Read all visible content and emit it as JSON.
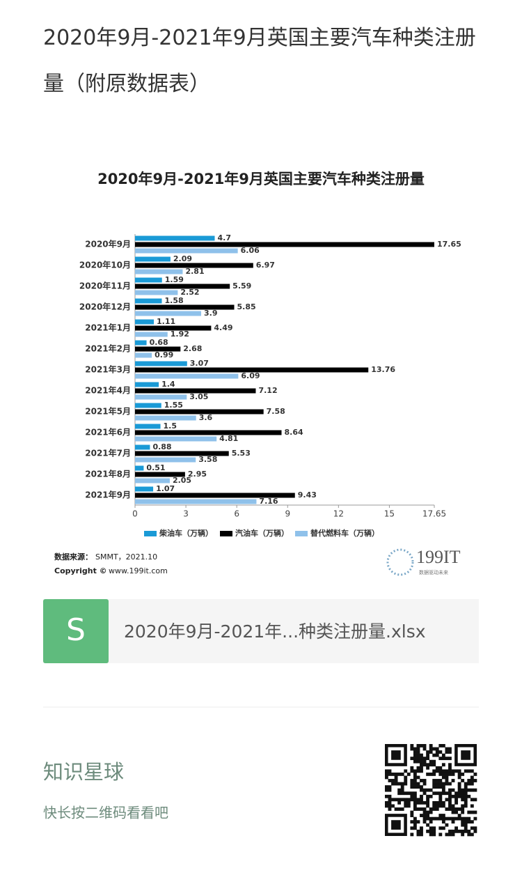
{
  "page_title": "2020年9月-2021年9月英国主要汽车种类注册量（附原数据表）",
  "chart_data": {
    "type": "hbar",
    "title": "2020年9月-2021年9月英国主要汽车种类注册量",
    "categories": [
      "2020年9月",
      "2020年10月",
      "2020年11月",
      "2020年12月",
      "2021年1月",
      "2021年2月",
      "2021年3月",
      "2021年4月",
      "2021年5月",
      "2021年6月",
      "2021年7月",
      "2021年8月",
      "2021年9月"
    ],
    "series": [
      {
        "name": "柴油车（万辆）",
        "color": "#1a9ad6",
        "values": [
          4.7,
          2.09,
          1.59,
          1.58,
          1.11,
          0.68,
          3.07,
          1.4,
          1.55,
          1.5,
          0.88,
          0.51,
          1.07
        ]
      },
      {
        "name": "汽油车（万辆）",
        "color": "#000000",
        "values": [
          17.65,
          6.97,
          5.59,
          5.85,
          4.49,
          2.68,
          13.76,
          7.12,
          7.58,
          8.64,
          5.53,
          2.95,
          9.43
        ]
      },
      {
        "name": "替代燃料车（万辆）",
        "color": "#8fc1ea",
        "values": [
          6.06,
          2.81,
          2.52,
          3.9,
          1.92,
          0.99,
          6.09,
          3.05,
          3.6,
          4.81,
          3.58,
          2.05,
          7.16
        ]
      }
    ],
    "xlim": [
      0,
      17.65
    ],
    "xticks": [
      0,
      3,
      6,
      9,
      12,
      15,
      17.65
    ],
    "source_label": "数据来源：",
    "source": "SMMT，2021.10",
    "copyright_label": "Copyright ©",
    "copyright": "www.199it.com"
  },
  "logo": {
    "text": "199IT",
    "tagline": "数据驱动未来"
  },
  "attachment": {
    "icon": "S",
    "name": "2020年9月-2021年...种类注册量.xlsx"
  },
  "footer": {
    "title": "知识星球",
    "subtitle": "快长按二维码看看吧"
  }
}
